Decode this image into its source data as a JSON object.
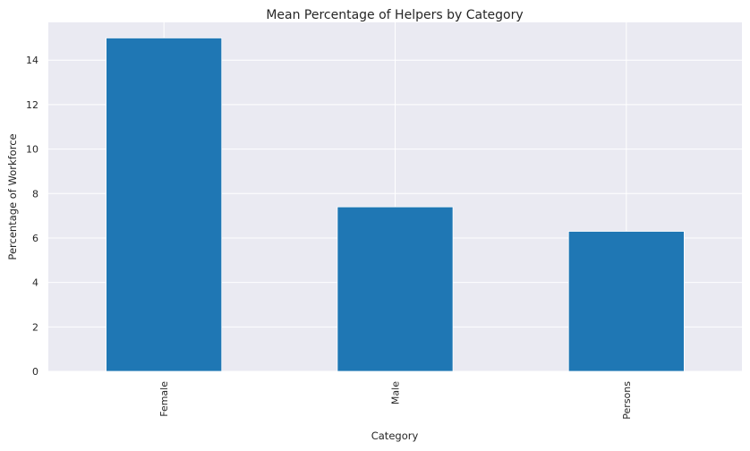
{
  "chart_data": {
    "type": "bar",
    "title": "Mean Percentage of Helpers by Category",
    "xlabel": "Category",
    "ylabel": "Percentage of Workforce",
    "categories": [
      "Female",
      "Male",
      "Persons"
    ],
    "values": [
      15.0,
      7.4,
      6.3
    ],
    "ylim": [
      0,
      15.7
    ],
    "yticks": [
      0,
      2,
      4,
      6,
      8,
      10,
      12,
      14
    ],
    "grid": true,
    "legend": "none",
    "colors": {
      "bar": "#1f77b4",
      "background": "#eaeaf2",
      "grid": "#ffffff",
      "text": "#262626"
    }
  }
}
